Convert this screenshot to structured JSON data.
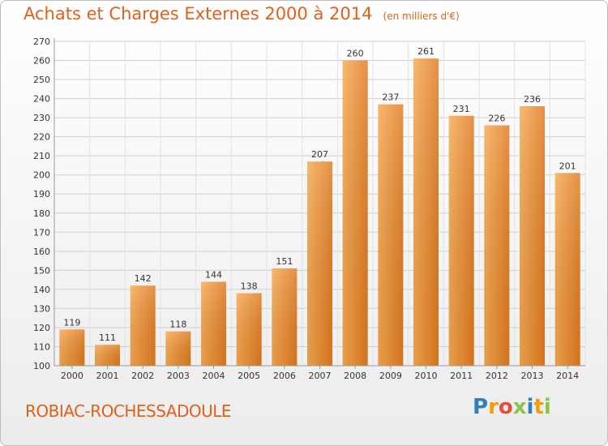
{
  "title": "Achats et Charges Externes 2000 à 2014",
  "subtitle": "(en milliers d'€)",
  "place": "ROBIAC-ROCHESSADOULE",
  "logo": {
    "text": "Proxiti",
    "letters": [
      {
        "ch": "P",
        "color": "#2f7fc1"
      },
      {
        "ch": "r",
        "color": "#f39c12"
      },
      {
        "ch": "o",
        "color": "#e74c3c"
      },
      {
        "ch": "x",
        "color": "#8bc34a"
      },
      {
        "ch": "i",
        "color": "#2f7fc1"
      },
      {
        "ch": "t",
        "color": "#f39c12"
      },
      {
        "ch": "i",
        "color": "#8bc34a"
      }
    ]
  },
  "colors": {
    "title": "#e0611a",
    "bar_light": "#f7a850",
    "bar_dark": "#e07a1f",
    "grid": "#cfcfcf"
  },
  "chart_data": {
    "type": "bar",
    "categories": [
      "2000",
      "2001",
      "2002",
      "2003",
      "2004",
      "2005",
      "2006",
      "2007",
      "2008",
      "2009",
      "2010",
      "2011",
      "2012",
      "2013",
      "2014"
    ],
    "values": [
      119,
      111,
      142,
      118,
      144,
      138,
      151,
      207,
      260,
      237,
      261,
      231,
      226,
      236,
      201
    ],
    "ylim": [
      100,
      270
    ],
    "yticks": [
      100,
      110,
      120,
      130,
      140,
      150,
      160,
      170,
      180,
      190,
      200,
      210,
      220,
      230,
      240,
      250,
      260,
      270
    ],
    "grid": true,
    "xlabel": "",
    "ylabel": ""
  }
}
